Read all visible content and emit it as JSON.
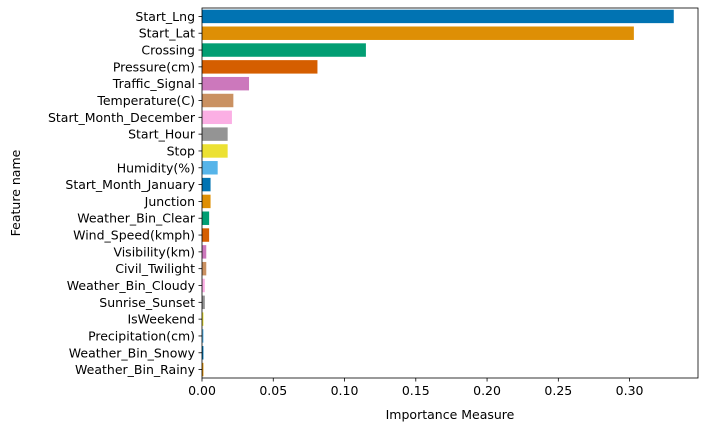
{
  "chart_data": {
    "type": "bar",
    "orientation": "horizontal",
    "title": "",
    "xlabel": "Importance Measure",
    "ylabel": "Feature name",
    "xlim": [
      0,
      0.348
    ],
    "xticks": [
      0.0,
      0.05,
      0.1,
      0.15,
      0.2,
      0.25,
      0.3
    ],
    "xtick_labels": [
      "0.00",
      "0.05",
      "0.10",
      "0.15",
      "0.20",
      "0.25",
      "0.30"
    ],
    "grid": false,
    "legend": "none",
    "categories": [
      "Start_Lng",
      "Start_Lat",
      "Crossing",
      "Pressure(cm)",
      "Traffic_Signal",
      "Temperature(C)",
      "Start_Month_December",
      "Start_Hour",
      "Stop",
      "Humidity(%)",
      "Start_Month_January",
      "Junction",
      "Weather_Bin_Clear",
      "Wind_Speed(kmph)",
      "Visibility(km)",
      "Civil_Twilight",
      "Weather_Bin_Cloudy",
      "Sunrise_Sunset",
      "IsWeekend",
      "Precipitation(cm)",
      "Weather_Bin_Snowy",
      "Weather_Bin_Rainy"
    ],
    "values": [
      0.331,
      0.303,
      0.115,
      0.081,
      0.033,
      0.022,
      0.021,
      0.018,
      0.018,
      0.011,
      0.006,
      0.006,
      0.005,
      0.005,
      0.003,
      0.003,
      0.002,
      0.002,
      0.001,
      0.001,
      0.001,
      0.001
    ],
    "colors": [
      "#0173b2",
      "#de8f05",
      "#029e73",
      "#d55e00",
      "#cc78bc",
      "#ca9161",
      "#fbafe4",
      "#949494",
      "#ece133",
      "#56b4e9",
      "#0173b2",
      "#de8f05",
      "#029e73",
      "#d55e00",
      "#cc78bc",
      "#ca9161",
      "#fbafe4",
      "#949494",
      "#ece133",
      "#56b4e9",
      "#0173b2",
      "#de8f05"
    ]
  }
}
